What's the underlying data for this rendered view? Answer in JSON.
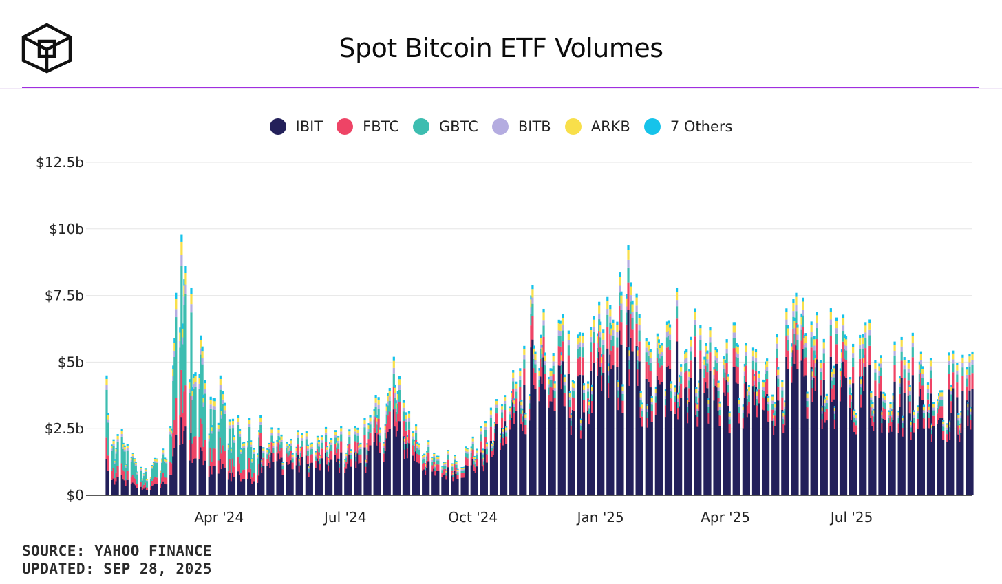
{
  "header": {
    "logo_name": "cube-logo",
    "title": "Spot Bitcoin ETF Volumes"
  },
  "colors": {
    "accent_rule": "#a02ee0",
    "IBIT": "#23205a",
    "FBTC": "#ee4466",
    "GBTC": "#3dbdb0",
    "BITB": "#b4ace0",
    "ARKB": "#f8df4a",
    "Others": "#16c3ea"
  },
  "footer": {
    "source": "SOURCE: YAHOO FINANCE",
    "updated": "UPDATED: SEP 28, 2025"
  },
  "chart_data": {
    "type": "bar",
    "stacked": true,
    "title": "Spot Bitcoin ETF Volumes",
    "xlabel": "",
    "ylabel": "",
    "ylim": [
      0,
      12.5
    ],
    "y_unit": "$ billions",
    "yticks": [
      {
        "value": 0,
        "label": "$0"
      },
      {
        "value": 2.5,
        "label": "$2.5b"
      },
      {
        "value": 5,
        "label": "$5b"
      },
      {
        "value": 7.5,
        "label": "$7.5b"
      },
      {
        "value": 10,
        "label": "$10b"
      },
      {
        "value": 12.5,
        "label": "$12.5b"
      }
    ],
    "xticks": [
      {
        "date": "2024-04-01",
        "label": "Apr '24"
      },
      {
        "date": "2024-07-01",
        "label": "Jul '24"
      },
      {
        "date": "2024-10-01",
        "label": "Oct '24"
      },
      {
        "date": "2025-01-01",
        "label": "Jan '25"
      },
      {
        "date": "2025-04-01",
        "label": "Apr '25"
      },
      {
        "date": "2025-07-01",
        "label": "Jul '25"
      }
    ],
    "x_range": [
      "2024-01-11",
      "2025-09-26"
    ],
    "grid": true,
    "legend_position": "top-center",
    "series_names": [
      "IBIT",
      "FBTC",
      "GBTC",
      "BITB",
      "ARKB",
      "7 Others"
    ],
    "total_volume_anchors": [
      {
        "date": "2024-01-11",
        "total": 4.5
      },
      {
        "date": "2024-01-12",
        "total": 3.1
      },
      {
        "date": "2024-01-16",
        "total": 2.1
      },
      {
        "date": "2024-01-22",
        "total": 2.5
      },
      {
        "date": "2024-01-30",
        "total": 1.6
      },
      {
        "date": "2024-02-08",
        "total": 1.0
      },
      {
        "date": "2024-02-15",
        "total": 1.4
      },
      {
        "date": "2024-02-26",
        "total": 2.6
      },
      {
        "date": "2024-03-01",
        "total": 7.6
      },
      {
        "date": "2024-03-05",
        "total": 9.8
      },
      {
        "date": "2024-03-08",
        "total": 8.6
      },
      {
        "date": "2024-03-12",
        "total": 7.8
      },
      {
        "date": "2024-03-19",
        "total": 6.0
      },
      {
        "date": "2024-03-26",
        "total": 3.7
      },
      {
        "date": "2024-04-02",
        "total": 4.5
      },
      {
        "date": "2024-04-15",
        "total": 3.0
      },
      {
        "date": "2024-05-01",
        "total": 3.0
      },
      {
        "date": "2024-06-03",
        "total": 2.4
      },
      {
        "date": "2024-07-15",
        "total": 2.9
      },
      {
        "date": "2024-08-05",
        "total": 5.2
      },
      {
        "date": "2024-09-03",
        "total": 1.6
      },
      {
        "date": "2024-10-01",
        "total": 2.2
      },
      {
        "date": "2024-10-30",
        "total": 4.7
      },
      {
        "date": "2024-11-12",
        "total": 7.5
      },
      {
        "date": "2024-11-13",
        "total": 7.9
      },
      {
        "date": "2024-11-21",
        "total": 7.0
      },
      {
        "date": "2024-12-05",
        "total": 6.8
      },
      {
        "date": "2024-12-19",
        "total": 6.1
      },
      {
        "date": "2025-01-21",
        "total": 9.4
      },
      {
        "date": "2025-02-03",
        "total": 5.9
      },
      {
        "date": "2025-02-25",
        "total": 7.8
      },
      {
        "date": "2025-04-08",
        "total": 6.5
      },
      {
        "date": "2025-04-23",
        "total": 5.5
      },
      {
        "date": "2025-05-22",
        "total": 7.6
      },
      {
        "date": "2025-07-11",
        "total": 6.5
      },
      {
        "date": "2025-07-14",
        "total": 6.6
      },
      {
        "date": "2025-08-14",
        "total": 6.1
      },
      {
        "date": "2025-09-26",
        "total": 5.4
      }
    ]
  }
}
